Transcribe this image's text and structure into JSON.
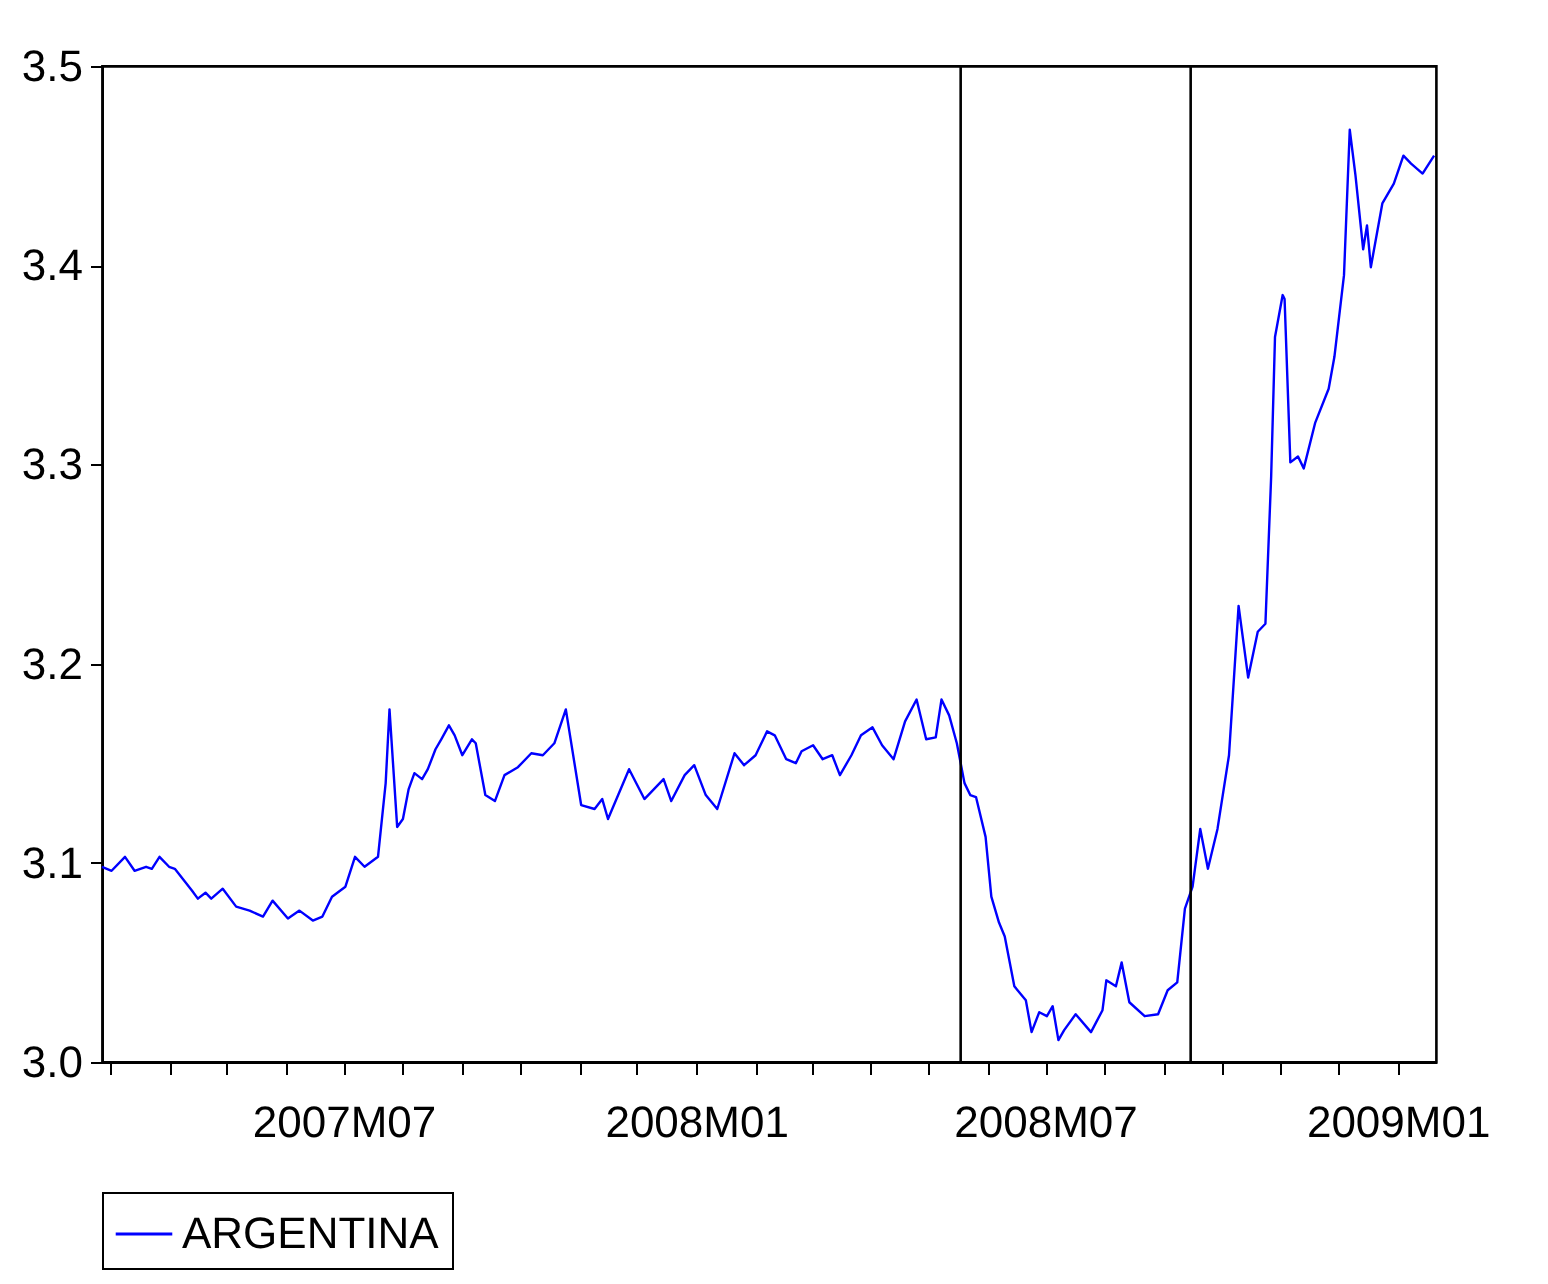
{
  "chart_data": {
    "type": "line",
    "x": [
      "2007-02-25",
      "2007-03-02",
      "2007-03-09",
      "2007-03-14",
      "2007-03-20",
      "2007-03-23",
      "2007-03-27",
      "2007-04-01",
      "2007-04-04",
      "2007-04-13",
      "2007-04-16",
      "2007-04-20",
      "2007-04-23",
      "2007-04-29",
      "2007-05-06",
      "2007-05-13",
      "2007-05-20",
      "2007-05-25",
      "2007-06-02",
      "2007-06-08",
      "2007-06-15",
      "2007-06-20",
      "2007-06-25",
      "2007-07-02",
      "2007-07-07",
      "2007-07-12",
      "2007-07-19",
      "2007-07-23",
      "2007-07-25",
      "2007-07-29",
      "2007-08-01",
      "2007-08-04",
      "2007-08-07",
      "2007-08-11",
      "2007-08-14",
      "2007-08-18",
      "2007-08-21",
      "2007-08-25",
      "2007-08-28",
      "2007-09-01",
      "2007-09-06",
      "2007-09-08",
      "2007-09-13",
      "2007-09-18",
      "2007-09-23",
      "2007-09-30",
      "2007-10-07",
      "2007-10-13",
      "2007-10-19",
      "2007-10-25",
      "2007-11-02",
      "2007-11-09",
      "2007-11-13",
      "2007-11-16",
      "2007-11-27",
      "2007-12-05",
      "2007-12-15",
      "2007-12-19",
      "2007-12-26",
      "2007-12-31",
      "2008-01-06",
      "2008-01-12",
      "2008-01-21",
      "2008-01-26",
      "2008-02-01",
      "2008-02-07",
      "2008-02-11",
      "2008-02-17",
      "2008-02-22",
      "2008-02-25",
      "2008-03-02",
      "2008-03-07",
      "2008-03-12",
      "2008-03-16",
      "2008-03-22",
      "2008-03-27",
      "2008-04-02",
      "2008-04-07",
      "2008-04-13",
      "2008-04-19",
      "2008-04-25",
      "2008-04-30",
      "2008-05-05",
      "2008-05-08",
      "2008-05-12",
      "2008-05-16",
      "2008-05-20",
      "2008-05-23",
      "2008-05-26",
      "2008-05-31",
      "2008-06-03",
      "2008-06-07",
      "2008-06-10",
      "2008-06-15",
      "2008-06-21",
      "2008-06-24",
      "2008-06-28",
      "2008-07-02",
      "2008-07-05",
      "2008-07-08",
      "2008-07-11",
      "2008-07-17",
      "2008-07-25",
      "2008-07-31",
      "2008-08-02",
      "2008-08-07",
      "2008-08-10",
      "2008-08-14",
      "2008-08-22",
      "2008-08-29",
      "2008-09-03",
      "2008-09-08",
      "2008-09-12",
      "2008-09-16",
      "2008-09-20",
      "2008-09-24",
      "2008-09-29",
      "2008-10-05",
      "2008-10-10",
      "2008-10-15",
      "2008-10-20",
      "2008-10-24",
      "2008-10-27",
      "2008-10-29",
      "2008-11-02",
      "2008-11-03",
      "2008-11-06",
      "2008-11-10",
      "2008-11-13",
      "2008-11-19",
      "2008-11-26",
      "2008-11-29",
      "2008-12-04",
      "2008-12-07",
      "2008-12-10",
      "2008-12-14",
      "2008-12-16",
      "2008-12-18",
      "2008-12-24",
      "2008-12-30",
      "2009-01-04",
      "2009-01-08",
      "2009-01-14",
      "2009-01-20"
    ],
    "series": [
      {
        "name": "ARGENTINA",
        "color": "#0000ff",
        "values": [
          3.098,
          3.096,
          3.103,
          3.096,
          3.098,
          3.097,
          3.103,
          3.098,
          3.097,
          3.086,
          3.082,
          3.085,
          3.082,
          3.087,
          3.078,
          3.076,
          3.073,
          3.081,
          3.072,
          3.076,
          3.071,
          3.073,
          3.083,
          3.088,
          3.103,
          3.098,
          3.103,
          3.14,
          3.177,
          3.118,
          3.122,
          3.137,
          3.145,
          3.142,
          3.147,
          3.157,
          3.162,
          3.169,
          3.164,
          3.154,
          3.162,
          3.16,
          3.134,
          3.131,
          3.144,
          3.148,
          3.155,
          3.154,
          3.16,
          3.177,
          3.129,
          3.127,
          3.132,
          3.122,
          3.147,
          3.132,
          3.142,
          3.131,
          3.144,
          3.149,
          3.134,
          3.127,
          3.155,
          3.149,
          3.154,
          3.166,
          3.164,
          3.152,
          3.15,
          3.156,
          3.159,
          3.152,
          3.154,
          3.144,
          3.154,
          3.164,
          3.168,
          3.159,
          3.152,
          3.171,
          3.182,
          3.162,
          3.163,
          3.182,
          3.174,
          3.16,
          3.14,
          3.134,
          3.133,
          3.113,
          3.083,
          3.07,
          3.063,
          3.038,
          3.031,
          3.015,
          3.025,
          3.023,
          3.028,
          3.011,
          3.016,
          3.024,
          3.015,
          3.026,
          3.041,
          3.038,
          3.05,
          3.03,
          3.023,
          3.024,
          3.036,
          3.04,
          3.077,
          3.088,
          3.117,
          3.097,
          3.117,
          3.154,
          3.229,
          3.193,
          3.216,
          3.22,
          3.294,
          3.364,
          3.385,
          3.383,
          3.301,
          3.304,
          3.298,
          3.321,
          3.338,
          3.354,
          3.395,
          3.468,
          3.445,
          3.408,
          3.42,
          3.399,
          3.431,
          3.441,
          3.455,
          3.451,
          3.446,
          3.455
        ]
      }
    ],
    "xlim": [
      "2007-02-25",
      "2009-01-21"
    ],
    "xticks": [
      {
        "value": "2007-03",
        "label": null
      },
      {
        "value": "2007-04",
        "label": null
      },
      {
        "value": "2007-05",
        "label": null
      },
      {
        "value": "2007-06",
        "label": null
      },
      {
        "value": "2007-07",
        "label": "2007M07"
      },
      {
        "value": "2007-08",
        "label": null
      },
      {
        "value": "2007-09",
        "label": null
      },
      {
        "value": "2007-10",
        "label": null
      },
      {
        "value": "2007-11",
        "label": null
      },
      {
        "value": "2007-12",
        "label": null
      },
      {
        "value": "2008-01",
        "label": "2008M01"
      },
      {
        "value": "2008-02",
        "label": null
      },
      {
        "value": "2008-03",
        "label": null
      },
      {
        "value": "2008-04",
        "label": null
      },
      {
        "value": "2008-05",
        "label": null
      },
      {
        "value": "2008-06",
        "label": null
      },
      {
        "value": "2008-07",
        "label": "2008M07"
      },
      {
        "value": "2008-08",
        "label": null
      },
      {
        "value": "2008-09",
        "label": null
      },
      {
        "value": "2008-10",
        "label": null
      },
      {
        "value": "2008-11",
        "label": null
      },
      {
        "value": "2008-12",
        "label": null
      },
      {
        "value": "2009-01",
        "label": "2009M01"
      }
    ],
    "ylim": [
      3.0,
      3.5
    ],
    "yticks": [
      {
        "value": 3.0,
        "label": "3.0"
      },
      {
        "value": 3.1,
        "label": "3.1"
      },
      {
        "value": 3.2,
        "label": "3.2"
      },
      {
        "value": 3.3,
        "label": "3.3"
      },
      {
        "value": 3.4,
        "label": "3.4"
      },
      {
        "value": 3.5,
        "label": "3.5"
      }
    ],
    "ref_lines": [
      {
        "axis": "x",
        "value": "2008-05-18",
        "color": "#000000"
      },
      {
        "axis": "x",
        "value": "2008-09-15",
        "color": "#000000"
      }
    ],
    "legend": "bottom"
  }
}
